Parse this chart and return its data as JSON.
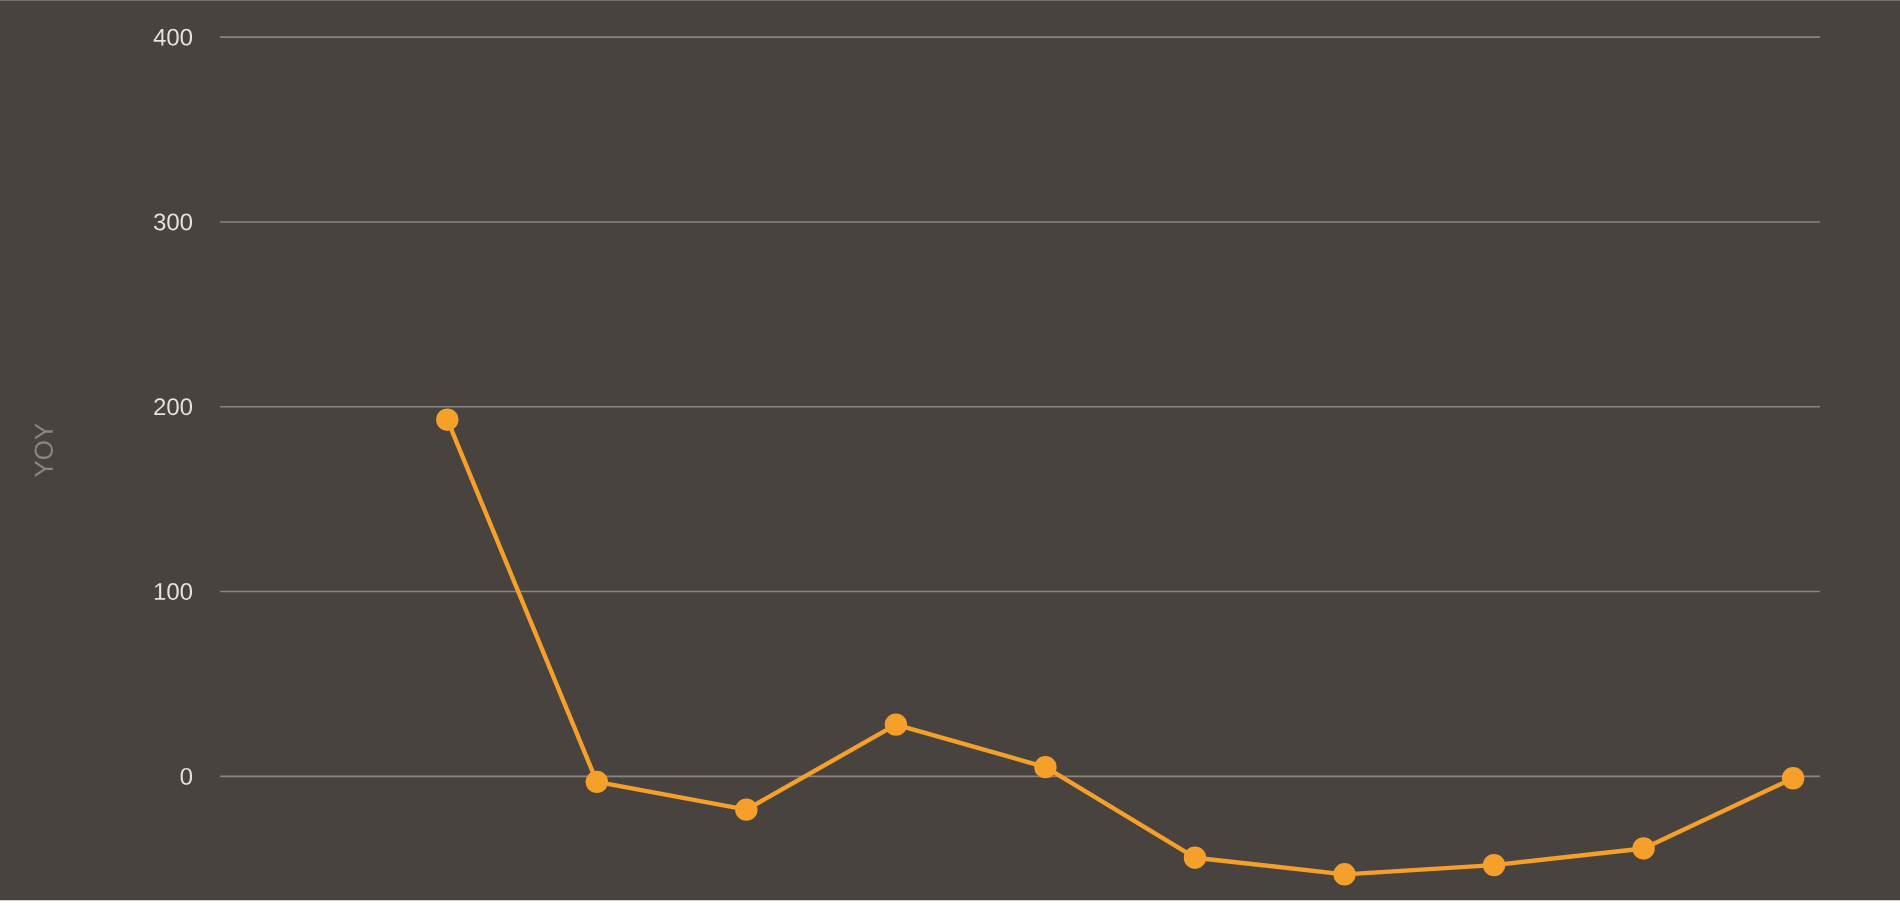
{
  "chart_data": {
    "type": "line",
    "ylabel": "YOY",
    "categories": [
      null,
      null,
      null,
      null,
      null,
      null,
      null,
      null,
      null,
      null,
      null
    ],
    "series": [
      {
        "color": "#f5a02a",
        "values": [
          null,
          193,
          -3,
          -18,
          28,
          5,
          -44,
          -53,
          -48,
          -39,
          -1
        ]
      }
    ],
    "ylim": [
      -67,
      420
    ],
    "yticks": [
      0,
      100,
      200,
      300,
      400
    ],
    "grid": "y",
    "marker": "circle",
    "line_style": "solid"
  }
}
